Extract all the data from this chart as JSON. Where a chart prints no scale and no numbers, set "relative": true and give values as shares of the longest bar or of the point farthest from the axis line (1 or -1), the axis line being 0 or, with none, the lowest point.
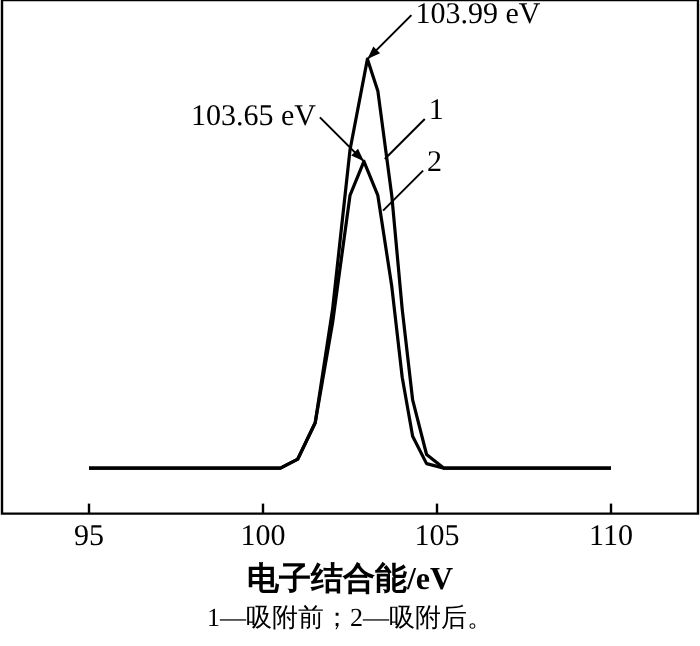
{
  "chart_data": {
    "type": "line",
    "relative": true,
    "xlabel": "电子结合能/eV",
    "xlim": [
      92.5,
      112.5
    ],
    "xticks": [
      95,
      100,
      105,
      110
    ],
    "grid": false,
    "marker": "none",
    "series": [
      {
        "name": "1",
        "color": "#000000",
        "x": [
          95,
          96,
          97,
          98,
          99,
          100,
          100.5,
          101,
          101.5,
          102,
          102.5,
          103.0,
          103.3,
          103.7,
          104.0,
          104.3,
          104.7,
          105.2,
          106,
          107,
          108,
          109,
          110
        ],
        "values": [
          0.1,
          0.1,
          0.1,
          0.1,
          0.1,
          0.1,
          0.1,
          0.12,
          0.2,
          0.45,
          0.8,
          1.0,
          0.93,
          0.7,
          0.45,
          0.25,
          0.13,
          0.1,
          0.1,
          0.1,
          0.1,
          0.1,
          0.1
        ]
      },
      {
        "name": "2",
        "color": "#000000",
        "x": [
          95,
          96,
          97,
          98,
          99,
          100,
          100.5,
          101,
          101.5,
          102,
          102.5,
          102.9,
          103.3,
          103.7,
          104.0,
          104.3,
          104.7,
          105.2,
          106,
          107,
          108,
          109,
          110
        ],
        "values": [
          0.1,
          0.1,
          0.1,
          0.1,
          0.1,
          0.1,
          0.1,
          0.12,
          0.2,
          0.42,
          0.7,
          0.775,
          0.7,
          0.5,
          0.3,
          0.17,
          0.11,
          0.1,
          0.1,
          0.1,
          0.1,
          0.1,
          0.1
        ]
      }
    ],
    "annotations": [
      {
        "text": "103.99 eV",
        "x": 103.0,
        "y": 1.0
      },
      {
        "text": "103.65 eV",
        "x": 102.9,
        "y": 0.775
      },
      "1—吸附前；2—吸附后。"
    ]
  }
}
